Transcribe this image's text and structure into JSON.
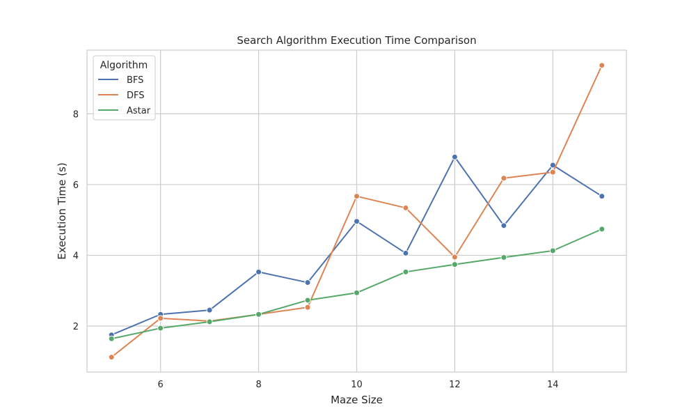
{
  "chart_data": {
    "type": "line",
    "title": "Search Algorithm Execution Time Comparison",
    "xlabel": "Maze Size",
    "ylabel": "Execution Time (s)",
    "xlim": [
      4.5,
      15.5
    ],
    "ylim": [
      0.7,
      9.8
    ],
    "xticks": [
      6,
      8,
      10,
      12,
      14
    ],
    "yticks": [
      2,
      4,
      6,
      8
    ],
    "grid": true,
    "legend": {
      "title": "Algorithm",
      "placement": "top-left"
    },
    "x": [
      5,
      6,
      7,
      8,
      9,
      10,
      11,
      12,
      13,
      14,
      15
    ],
    "series": [
      {
        "name": "BFS",
        "color": "#4c72b0",
        "values": [
          1.75,
          2.33,
          2.45,
          3.53,
          3.23,
          4.96,
          4.06,
          6.78,
          4.84,
          6.55,
          5.67
        ]
      },
      {
        "name": "DFS",
        "color": "#dd8452",
        "values": [
          1.12,
          2.22,
          2.14,
          2.33,
          2.53,
          5.67,
          5.34,
          3.95,
          6.18,
          6.35,
          9.37
        ]
      },
      {
        "name": "Astar",
        "color": "#55a868",
        "values": [
          1.64,
          1.94,
          2.12,
          2.33,
          2.73,
          2.94,
          3.53,
          3.74,
          3.94,
          4.13,
          4.74
        ]
      }
    ]
  }
}
